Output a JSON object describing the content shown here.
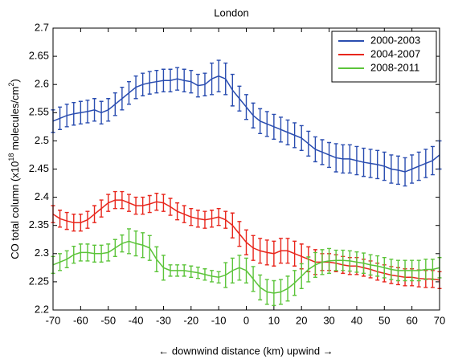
{
  "chart_data": {
    "type": "line",
    "title": "London",
    "xlabel": "← downwind   distance (km)   upwind →",
    "ylabel_parts": [
      "CO total column (x10",
      "18",
      " molecules/cm",
      "2",
      ")"
    ],
    "xlim": [
      -70,
      70
    ],
    "ylim": [
      2.2,
      2.7
    ],
    "xticks": [
      -70,
      -60,
      -50,
      -40,
      -30,
      -20,
      -10,
      0,
      10,
      20,
      30,
      40,
      50,
      60,
      70
    ],
    "yticks": [
      2.2,
      2.25,
      2.3,
      2.35,
      2.4,
      2.45,
      2.5,
      2.55,
      2.6,
      2.65,
      2.7
    ],
    "grid": false,
    "legend": "upper right",
    "x": [
      -70,
      -67.5,
      -65,
      -62.5,
      -60,
      -57.5,
      -55,
      -52.5,
      -50,
      -47.5,
      -45,
      -42.5,
      -40,
      -37.5,
      -35,
      -32.5,
      -30,
      -27.5,
      -25,
      -22.5,
      -20,
      -17.5,
      -15,
      -12.5,
      -10,
      -7.5,
      -5,
      -2.5,
      0,
      2.5,
      5,
      7.5,
      10,
      12.5,
      15,
      17.5,
      20,
      22.5,
      25,
      27.5,
      30,
      32.5,
      35,
      37.5,
      40,
      42.5,
      45,
      47.5,
      50,
      52.5,
      55,
      57.5,
      60,
      62.5,
      65,
      67.5,
      70
    ],
    "series": [
      {
        "name": "2000-2003",
        "color": "#2a4db0",
        "values": [
          2.535,
          2.54,
          2.545,
          2.548,
          2.55,
          2.552,
          2.555,
          2.55,
          2.555,
          2.565,
          2.575,
          2.585,
          2.595,
          2.6,
          2.603,
          2.605,
          2.607,
          2.607,
          2.61,
          2.607,
          2.605,
          2.598,
          2.6,
          2.61,
          2.615,
          2.61,
          2.59,
          2.575,
          2.56,
          2.545,
          2.535,
          2.53,
          2.525,
          2.52,
          2.515,
          2.51,
          2.505,
          2.495,
          2.485,
          2.48,
          2.475,
          2.47,
          2.468,
          2.468,
          2.465,
          2.462,
          2.46,
          2.458,
          2.455,
          2.45,
          2.448,
          2.445,
          2.45,
          2.455,
          2.46,
          2.465,
          2.475
        ],
        "errors": [
          0.02,
          0.02,
          0.02,
          0.02,
          0.02,
          0.02,
          0.02,
          0.02,
          0.02,
          0.02,
          0.02,
          0.02,
          0.02,
          0.02,
          0.02,
          0.02,
          0.02,
          0.02,
          0.02,
          0.02,
          0.02,
          0.02,
          0.02,
          0.028,
          0.028,
          0.028,
          0.028,
          0.022,
          0.022,
          0.022,
          0.022,
          0.022,
          0.022,
          0.022,
          0.022,
          0.022,
          0.022,
          0.022,
          0.022,
          0.022,
          0.022,
          0.025,
          0.025,
          0.025,
          0.025,
          0.025,
          0.025,
          0.025,
          0.025,
          0.025,
          0.025,
          0.025,
          0.025,
          0.025,
          0.025,
          0.025,
          0.025
        ]
      },
      {
        "name": "2004-2007",
        "color": "#e8261c",
        "values": [
          2.37,
          2.362,
          2.358,
          2.355,
          2.355,
          2.36,
          2.37,
          2.38,
          2.39,
          2.395,
          2.395,
          2.39,
          2.385,
          2.385,
          2.388,
          2.392,
          2.39,
          2.383,
          2.375,
          2.37,
          2.365,
          2.362,
          2.36,
          2.362,
          2.365,
          2.36,
          2.35,
          2.335,
          2.32,
          2.31,
          2.305,
          2.302,
          2.3,
          2.305,
          2.305,
          2.3,
          2.295,
          2.29,
          2.285,
          2.285,
          2.285,
          2.283,
          2.28,
          2.278,
          2.278,
          2.275,
          2.272,
          2.268,
          2.265,
          2.262,
          2.26,
          2.258,
          2.258,
          2.256,
          2.255,
          2.255,
          2.253
        ],
        "errors": [
          0.015,
          0.015,
          0.015,
          0.015,
          0.015,
          0.015,
          0.015,
          0.015,
          0.015,
          0.015,
          0.015,
          0.015,
          0.015,
          0.015,
          0.015,
          0.015,
          0.015,
          0.015,
          0.015,
          0.015,
          0.015,
          0.015,
          0.015,
          0.015,
          0.015,
          0.015,
          0.022,
          0.022,
          0.022,
          0.022,
          0.022,
          0.022,
          0.022,
          0.022,
          0.022,
          0.022,
          0.022,
          0.022,
          0.022,
          0.015,
          0.015,
          0.015,
          0.015,
          0.015,
          0.015,
          0.015,
          0.015,
          0.015,
          0.015,
          0.015,
          0.015,
          0.015,
          0.015,
          0.015,
          0.015,
          0.015,
          0.015
        ]
      },
      {
        "name": "2008-2011",
        "color": "#5cc43a",
        "values": [
          2.28,
          2.285,
          2.29,
          2.298,
          2.302,
          2.302,
          2.3,
          2.3,
          2.302,
          2.31,
          2.318,
          2.322,
          2.318,
          2.315,
          2.31,
          2.29,
          2.275,
          2.27,
          2.27,
          2.27,
          2.268,
          2.266,
          2.263,
          2.26,
          2.258,
          2.262,
          2.27,
          2.275,
          2.27,
          2.255,
          2.24,
          2.232,
          2.23,
          2.232,
          2.238,
          2.248,
          2.26,
          2.272,
          2.28,
          2.285,
          2.287,
          2.288,
          2.288,
          2.287,
          2.285,
          2.283,
          2.28,
          2.278,
          2.275,
          2.272,
          2.27,
          2.27,
          2.27,
          2.27,
          2.272,
          2.272,
          2.275
        ],
        "errors": [
          0.015,
          0.015,
          0.015,
          0.015,
          0.015,
          0.015,
          0.015,
          0.015,
          0.015,
          0.015,
          0.015,
          0.022,
          0.022,
          0.022,
          0.022,
          0.022,
          0.022,
          0.01,
          0.01,
          0.01,
          0.01,
          0.01,
          0.01,
          0.01,
          0.01,
          0.022,
          0.022,
          0.022,
          0.022,
          0.022,
          0.022,
          0.022,
          0.022,
          0.022,
          0.022,
          0.022,
          0.022,
          0.022,
          0.022,
          0.022,
          0.022,
          0.018,
          0.018,
          0.018,
          0.018,
          0.018,
          0.018,
          0.018,
          0.018,
          0.018,
          0.018,
          0.018,
          0.018,
          0.018,
          0.018,
          0.018,
          0.018
        ]
      }
    ]
  }
}
